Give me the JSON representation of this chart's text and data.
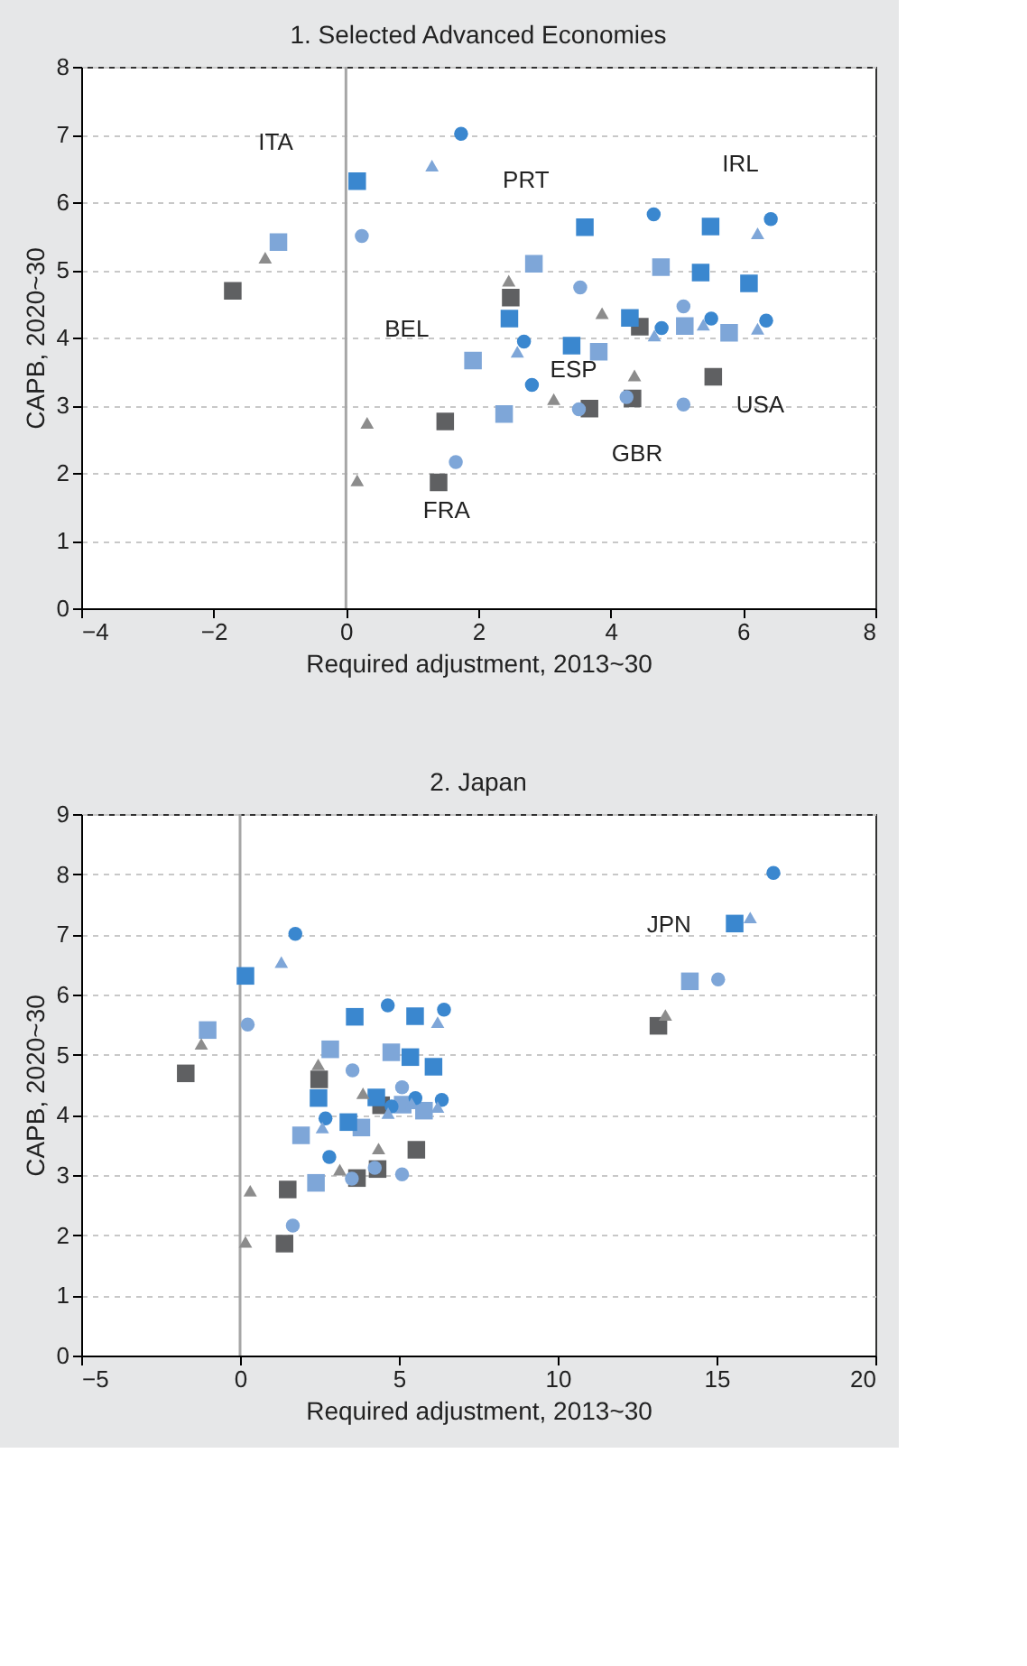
{
  "chart_data": [
    {
      "type": "scatter",
      "title": "1. Selected Advanced Economies",
      "xlabel": "Required adjustment, 2013~30",
      "ylabel": "CAPB, 2020~30",
      "xlim": [
        -4,
        8
      ],
      "xticks": [
        -4,
        -2,
        0,
        2,
        4,
        6,
        8
      ],
      "ylim": [
        0,
        8
      ],
      "yticks": [
        0,
        1,
        2,
        3,
        4,
        5,
        6,
        7,
        8
      ],
      "grid": "y",
      "ref_lines": [
        {
          "axis": "x",
          "value": 0,
          "color": "#a6a6a6"
        }
      ],
      "annotations": [
        "ITA",
        "PRT",
        "IRL",
        "BEL",
        "ESP",
        "GBR",
        "USA",
        "FRA"
      ],
      "series": [
        {
          "marker": "square",
          "color": "#5f6062",
          "x": [
            -1.71,
            2.49,
            1.5,
            1.4,
            3.68,
            4.44,
            4.33,
            5.55
          ],
          "values": [
            4.69,
            4.59,
            2.76,
            1.86,
            2.95,
            4.16,
            3.1,
            3.42
          ]
        },
        {
          "marker": "square",
          "color": "#7ea6d8",
          "x": [
            -1.02,
            2.84,
            1.92,
            2.39,
            3.82,
            4.76,
            5.12,
            5.79
          ],
          "values": [
            5.41,
            5.09,
            3.66,
            2.87,
            3.79,
            5.04,
            4.17,
            4.07
          ]
        },
        {
          "marker": "square",
          "color": "#3a87cf",
          "x": [
            0.17,
            3.61,
            2.47,
            3.41,
            4.29,
            5.51,
            5.36,
            6.09
          ],
          "values": [
            6.31,
            5.63,
            4.28,
            3.88,
            4.29,
            5.64,
            4.96,
            4.8
          ]
        },
        {
          "marker": "circle",
          "color": "#3a87cf",
          "x": [
            1.74,
            4.65,
            2.69,
            2.81,
            4.77,
            5.52,
            6.42,
            6.35
          ],
          "values": [
            7.01,
            5.82,
            3.94,
            3.3,
            4.14,
            4.28,
            5.75,
            4.25
          ]
        },
        {
          "marker": "circle",
          "color": "#7ea6d8",
          "x": [
            0.24,
            3.54,
            1.66,
            3.52,
            5.1,
            5.1,
            4.24
          ],
          "values": [
            5.5,
            4.74,
            2.16,
            2.94,
            4.46,
            3.01,
            3.12
          ]
        },
        {
          "marker": "triangle",
          "color": "#8c8c8c",
          "x": [
            -1.22,
            2.46,
            0.32,
            0.17,
            3.14,
            3.87,
            4.36
          ],
          "values": [
            5.18,
            4.84,
            2.74,
            1.89,
            3.09,
            4.36,
            3.44
          ]
        },
        {
          "marker": "triangle",
          "color": "#7ea6d8",
          "x": [
            1.3,
            2.59,
            6.22,
            5.4,
            6.22,
            4.66
          ],
          "values": [
            6.54,
            3.79,
            5.54,
            4.19,
            4.13,
            4.03
          ]
        }
      ]
    },
    {
      "type": "scatter",
      "title": "2. Japan",
      "xlabel": "Required adjustment, 2013~30",
      "ylabel": "CAPB, 2020~30",
      "xlim": [
        -5,
        20
      ],
      "xticks": [
        -5,
        0,
        5,
        10,
        15,
        20
      ],
      "ylim": [
        0,
        9
      ],
      "yticks": [
        0,
        1,
        2,
        3,
        4,
        5,
        6,
        7,
        8,
        9
      ],
      "grid": "y",
      "ref_lines": [
        {
          "axis": "x",
          "value": 0,
          "color": "#a6a6a6"
        }
      ],
      "annotations": [
        "JPN"
      ],
      "series": [
        {
          "marker": "square",
          "color": "#5f6062",
          "x": [
            -1.71,
            2.49,
            1.5,
            1.4,
            3.68,
            4.44,
            4.33,
            5.55,
            13.17
          ],
          "values": [
            4.69,
            4.59,
            2.76,
            1.86,
            2.95,
            4.16,
            3.1,
            3.42,
            5.48
          ]
        },
        {
          "marker": "square",
          "color": "#7ea6d8",
          "x": [
            -1.02,
            2.84,
            1.92,
            2.39,
            3.82,
            4.76,
            5.12,
            5.79,
            14.16
          ],
          "values": [
            5.41,
            5.09,
            3.66,
            2.87,
            3.79,
            5.04,
            4.17,
            4.07,
            6.22
          ]
        },
        {
          "marker": "square",
          "color": "#3a87cf",
          "x": [
            0.17,
            3.61,
            2.47,
            3.41,
            4.29,
            5.51,
            5.36,
            6.09,
            15.57
          ],
          "values": [
            6.31,
            5.63,
            4.28,
            3.88,
            4.29,
            5.64,
            4.96,
            4.8,
            7.18
          ]
        },
        {
          "marker": "circle",
          "color": "#3a87cf",
          "x": [
            1.74,
            4.65,
            2.69,
            2.81,
            4.77,
            5.52,
            6.42,
            6.35,
            16.79
          ],
          "values": [
            7.01,
            5.82,
            3.94,
            3.3,
            4.14,
            4.28,
            5.75,
            4.25,
            8.02
          ]
        },
        {
          "marker": "circle",
          "color": "#7ea6d8",
          "x": [
            0.24,
            3.54,
            1.66,
            3.52,
            5.1,
            5.1,
            4.24,
            15.05
          ],
          "values": [
            5.5,
            4.74,
            2.16,
            2.94,
            4.46,
            3.01,
            3.12,
            6.25
          ]
        },
        {
          "marker": "triangle",
          "color": "#8c8c8c",
          "x": [
            -1.22,
            2.46,
            0.32,
            0.17,
            3.14,
            3.87,
            4.36,
            13.39
          ],
          "values": [
            5.18,
            4.84,
            2.74,
            1.89,
            3.09,
            4.36,
            3.44,
            5.66
          ]
        },
        {
          "marker": "triangle",
          "color": "#7ea6d8",
          "x": [
            1.3,
            2.59,
            6.22,
            5.4,
            6.22,
            4.66,
            16.06
          ],
          "values": [
            6.54,
            3.79,
            5.54,
            4.19,
            4.13,
            4.03,
            7.28
          ]
        }
      ]
    }
  ]
}
